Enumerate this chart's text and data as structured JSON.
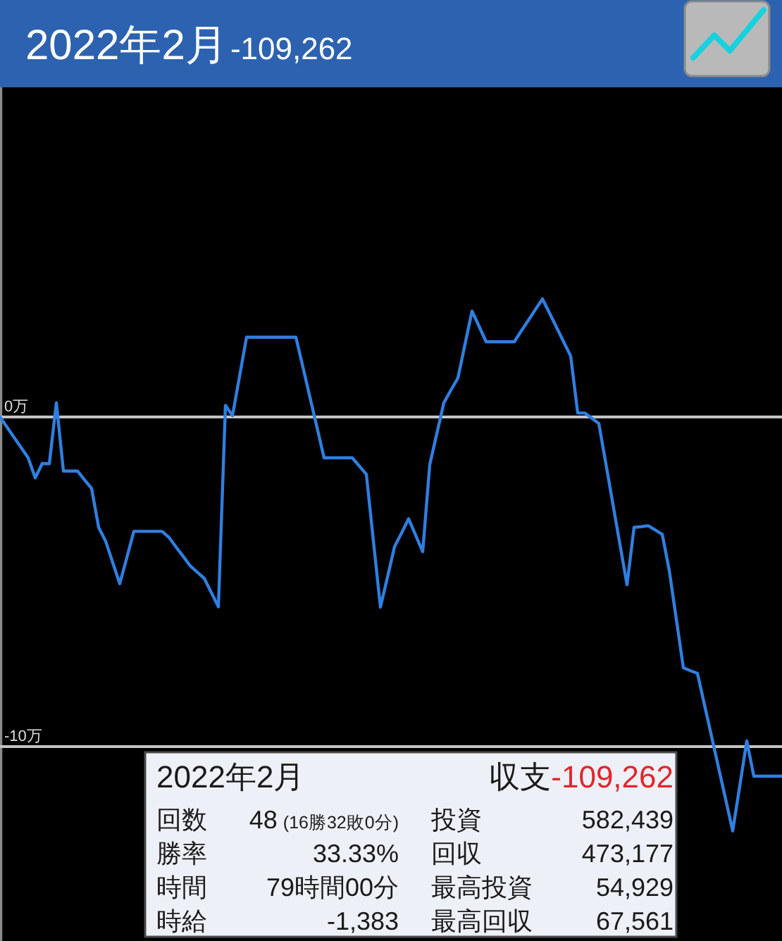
{
  "chart_data": [
    {
      "type": "line",
      "title": "2022年2月",
      "subtitle": "-109,262",
      "categories": [
        null,
        null,
        null,
        null,
        null,
        null,
        null,
        null,
        null,
        null,
        null,
        null,
        null,
        null,
        null,
        null,
        null,
        null,
        null,
        null,
        null,
        null,
        null,
        null,
        null,
        null,
        null,
        null,
        null,
        null,
        null,
        null,
        null,
        null,
        null,
        null,
        null,
        null,
        null,
        null,
        null,
        null,
        null,
        null,
        null,
        null,
        null,
        null,
        null,
        null,
        null,
        null,
        null,
        null,
        null,
        null,
        null,
        null,
        null,
        null,
        null,
        null,
        null,
        null,
        null,
        null,
        null,
        null,
        null,
        null,
        null,
        null,
        null,
        null,
        null,
        null,
        null,
        null,
        null,
        null,
        null,
        null,
        null,
        null,
        null,
        null,
        null,
        null,
        null,
        null,
        null,
        null,
        null,
        null,
        null,
        null,
        null,
        null,
        null,
        null,
        null,
        null,
        null,
        null,
        null,
        null,
        null,
        null,
        null,
        null,
        null,
        null
      ],
      "series": [
        {
          "color": "#2f7fe0",
          "values": [
            0,
            -0.31,
            -0.62,
            -0.93,
            -1.24,
            -1.85,
            -1.41,
            -1.42,
            0.43,
            -1.64,
            -1.64,
            -1.64,
            -1.91,
            -2.17,
            -3.35,
            -3.77,
            -4.42,
            -5.06,
            -4.27,
            -3.47,
            -3.47,
            -3.47,
            -3.47,
            -3.47,
            -3.66,
            -3.95,
            -4.23,
            -4.52,
            -4.71,
            -4.9,
            -5.33,
            -5.76,
            0.35,
            0.04,
            1.23,
            2.42,
            2.42,
            2.42,
            2.42,
            2.42,
            2.42,
            2.42,
            2.42,
            1.51,
            0.59,
            -0.32,
            -1.24,
            -1.24,
            -1.24,
            -1.24,
            -1.24,
            -1.49,
            -1.74,
            -3.76,
            -5.77,
            -4.86,
            -3.94,
            -3.52,
            -3.09,
            -3.59,
            -4.09,
            -1.45,
            -0.51,
            0.43,
            0.81,
            1.18,
            2.2,
            3.21,
            2.75,
            2.28,
            2.28,
            2.28,
            2.28,
            2.28,
            2.61,
            2.93,
            3.26,
            3.58,
            3.15,
            2.72,
            2.28,
            1.85,
            0.12,
            0.12,
            -0.04,
            -0.2,
            -1.42,
            -2.65,
            -3.87,
            -5.09,
            -3.35,
            -3.33,
            -3.3,
            -3.43,
            -3.56,
            -4.66,
            -6.14,
            -7.61,
            -7.7,
            -7.78,
            -8.74,
            -9.69,
            -10.65,
            -11.6,
            -12.56,
            -11.2,
            -9.83,
            -10.9,
            -10.9,
            -10.9,
            -10.9,
            -10.9
          ]
        }
      ],
      "ylim": [
        -15.9,
        10
      ],
      "yticks": [
        {
          "value": 0,
          "label": "0万"
        },
        {
          "value": -10,
          "label": "-10万"
        }
      ],
      "grid": "y",
      "tick_labels": "y"
    },
    {
      "type": "other",
      "title": "2022年2月",
      "annotations": [
        "収支",
        "-109,262",
        "回数",
        "48",
        "(16勝32敗0分)",
        "投資",
        "582,439",
        "勝率",
        "33.33%",
        "回収",
        "473,177",
        "時間",
        "79時間00分",
        "最高投資",
        "54,929",
        "時給",
        "-1,383",
        "最高回収",
        "67,561"
      ]
    }
  ]
}
